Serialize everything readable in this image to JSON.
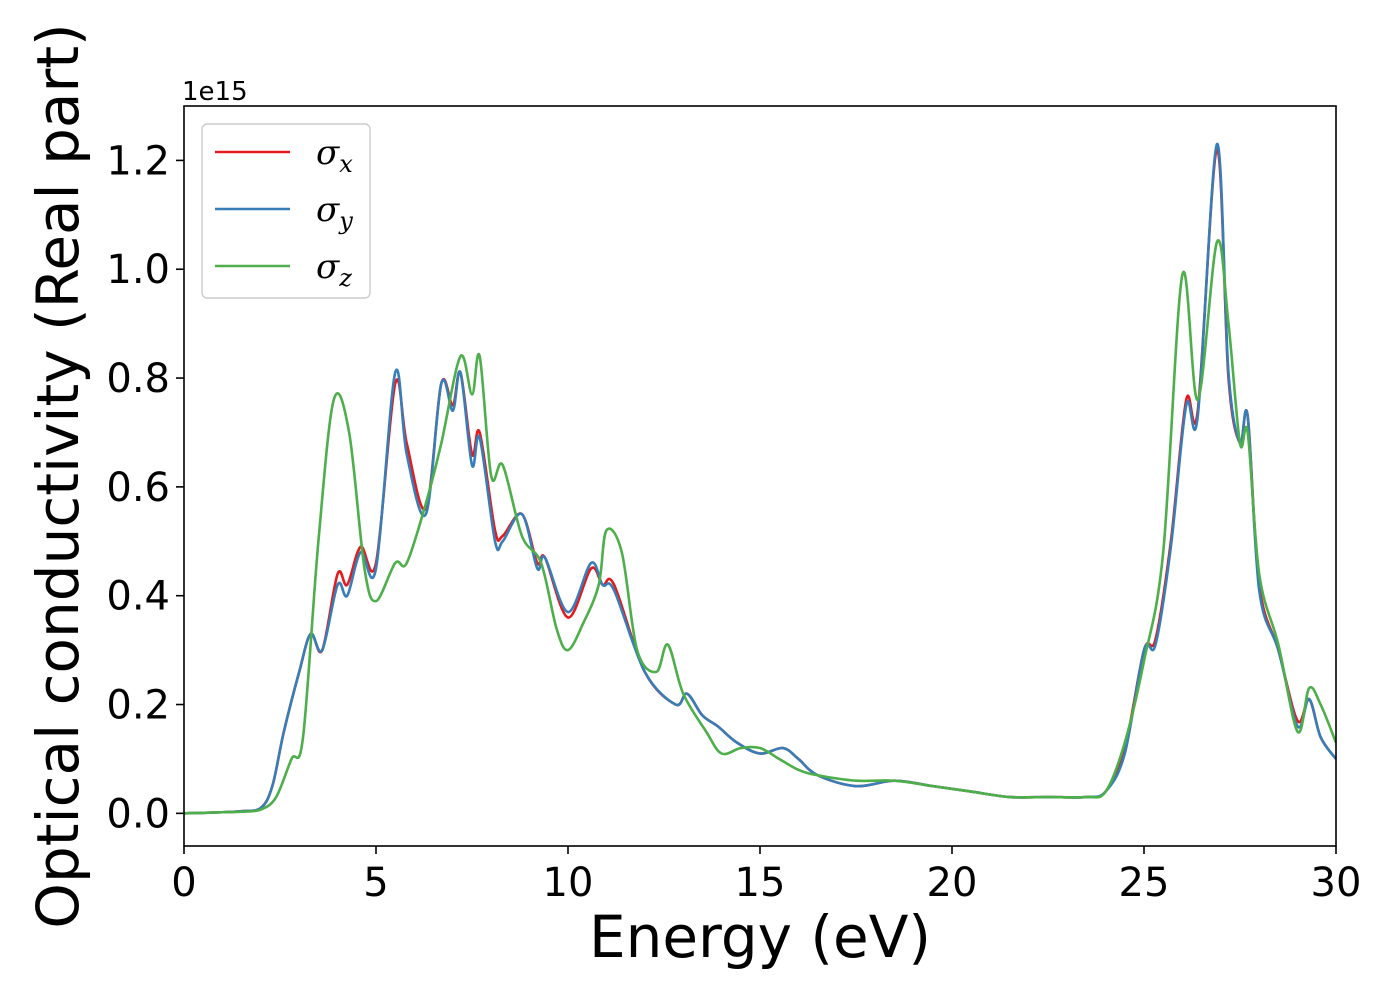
{
  "chart_data": {
    "type": "line",
    "title": "",
    "xlabel": "Energy (eV)",
    "ylabel": "Optical conductivity (Real part)",
    "y_offset_label": "1e15",
    "xlim": [
      0,
      30
    ],
    "ylim": [
      -0.06,
      1.3
    ],
    "x_ticks": [
      0,
      5,
      10,
      15,
      20,
      25,
      30
    ],
    "x_tick_labels": [
      "0",
      "5",
      "10",
      "15",
      "20",
      "25",
      "30"
    ],
    "y_ticks": [
      0.0,
      0.2,
      0.4,
      0.6,
      0.8,
      1.0,
      1.2
    ],
    "y_tick_labels": [
      "0.0",
      "0.2",
      "0.4",
      "0.6",
      "0.8",
      "1.0",
      "1.2"
    ],
    "grid": false,
    "legend_position": "top-left",
    "series": [
      {
        "name": "σx",
        "symbol": "σ",
        "subscript": "x",
        "color": "#e41a1c",
        "x": [
          0,
          1,
          1.5,
          2,
          2.3,
          2.6,
          3,
          3.3,
          3.6,
          4,
          4.25,
          4.6,
          5,
          5.5,
          5.8,
          6.3,
          6.7,
          7,
          7.2,
          7.5,
          7.7,
          8.1,
          8.3,
          8.8,
          9.2,
          9.4,
          10,
          10.6,
          10.9,
          11.2,
          12,
          12.8,
          13.1,
          13.5,
          13.9,
          14.4,
          15,
          15.6,
          16,
          16.5,
          17.5,
          18.5,
          19.5,
          20.5,
          21.5,
          22.5,
          23.5,
          24,
          24.5,
          25,
          25.3,
          25.7,
          26.1,
          26.4,
          26.9,
          27.2,
          27.5,
          27.7,
          28,
          28.5,
          29,
          29.3,
          29.6,
          30
        ],
        "y": [
          0.0,
          0.002,
          0.004,
          0.01,
          0.05,
          0.15,
          0.26,
          0.33,
          0.3,
          0.44,
          0.42,
          0.49,
          0.46,
          0.79,
          0.68,
          0.56,
          0.79,
          0.75,
          0.81,
          0.66,
          0.7,
          0.52,
          0.51,
          0.55,
          0.46,
          0.47,
          0.36,
          0.45,
          0.42,
          0.42,
          0.26,
          0.2,
          0.22,
          0.18,
          0.16,
          0.13,
          0.11,
          0.12,
          0.1,
          0.07,
          0.05,
          0.06,
          0.05,
          0.04,
          0.03,
          0.03,
          0.03,
          0.04,
          0.12,
          0.3,
          0.32,
          0.5,
          0.76,
          0.74,
          1.22,
          0.8,
          0.68,
          0.73,
          0.42,
          0.3,
          0.17,
          0.21,
          0.14,
          0.1
        ]
      },
      {
        "name": "σy",
        "symbol": "σ",
        "subscript": "y",
        "color": "#377eb8",
        "x": [
          0,
          1,
          1.5,
          2,
          2.3,
          2.6,
          3,
          3.3,
          3.6,
          4,
          4.25,
          4.6,
          5,
          5.5,
          5.8,
          6.3,
          6.7,
          7,
          7.2,
          7.5,
          7.7,
          8.1,
          8.3,
          8.8,
          9.2,
          9.4,
          10,
          10.6,
          10.9,
          11.2,
          12,
          12.8,
          13.1,
          13.5,
          13.9,
          14.4,
          15,
          15.6,
          16,
          16.5,
          17.5,
          18.5,
          19.5,
          20.5,
          21.5,
          22.5,
          23.5,
          24,
          24.5,
          25,
          25.3,
          25.7,
          26.1,
          26.4,
          26.9,
          27.2,
          27.5,
          27.7,
          28,
          28.5,
          29,
          29.3,
          29.6,
          30
        ],
        "y": [
          0.0,
          0.002,
          0.004,
          0.01,
          0.05,
          0.15,
          0.26,
          0.33,
          0.3,
          0.42,
          0.4,
          0.48,
          0.45,
          0.81,
          0.66,
          0.55,
          0.79,
          0.74,
          0.81,
          0.64,
          0.69,
          0.5,
          0.5,
          0.55,
          0.45,
          0.47,
          0.37,
          0.46,
          0.42,
          0.41,
          0.26,
          0.2,
          0.22,
          0.18,
          0.16,
          0.13,
          0.11,
          0.12,
          0.1,
          0.07,
          0.05,
          0.06,
          0.05,
          0.04,
          0.03,
          0.03,
          0.03,
          0.04,
          0.11,
          0.3,
          0.31,
          0.49,
          0.75,
          0.73,
          1.23,
          0.81,
          0.68,
          0.73,
          0.41,
          0.3,
          0.16,
          0.21,
          0.14,
          0.1
        ]
      },
      {
        "name": "σz",
        "symbol": "σ",
        "subscript": "z",
        "color": "#4daf4a",
        "x": [
          0,
          1,
          1.5,
          2,
          2.4,
          2.8,
          3.1,
          3.5,
          3.9,
          4.3,
          4.7,
          5,
          5.5,
          5.8,
          6.3,
          6.7,
          7.2,
          7.5,
          7.7,
          8.0,
          8.3,
          8.8,
          9.3,
          9.7,
          10,
          10.4,
          10.8,
          11,
          11.4,
          11.8,
          12.3,
          12.6,
          13,
          13.6,
          14,
          14.5,
          15,
          15.5,
          16,
          16.5,
          17.5,
          18.5,
          19.5,
          20.5,
          21.5,
          22.5,
          23.5,
          24,
          24.5,
          25,
          25.5,
          26,
          26.4,
          26.9,
          27.2,
          27.5,
          27.7,
          28,
          28.5,
          29,
          29.3,
          29.6,
          30
        ],
        "y": [
          0.0,
          0.002,
          0.003,
          0.007,
          0.03,
          0.1,
          0.14,
          0.5,
          0.76,
          0.7,
          0.45,
          0.39,
          0.46,
          0.46,
          0.57,
          0.68,
          0.84,
          0.77,
          0.84,
          0.62,
          0.64,
          0.51,
          0.46,
          0.34,
          0.3,
          0.35,
          0.42,
          0.52,
          0.48,
          0.3,
          0.26,
          0.31,
          0.22,
          0.15,
          0.11,
          0.12,
          0.12,
          0.1,
          0.08,
          0.07,
          0.06,
          0.06,
          0.05,
          0.04,
          0.03,
          0.03,
          0.03,
          0.04,
          0.13,
          0.28,
          0.48,
          0.99,
          0.76,
          1.05,
          0.9,
          0.68,
          0.7,
          0.44,
          0.31,
          0.15,
          0.23,
          0.2,
          0.13
        ]
      }
    ]
  }
}
